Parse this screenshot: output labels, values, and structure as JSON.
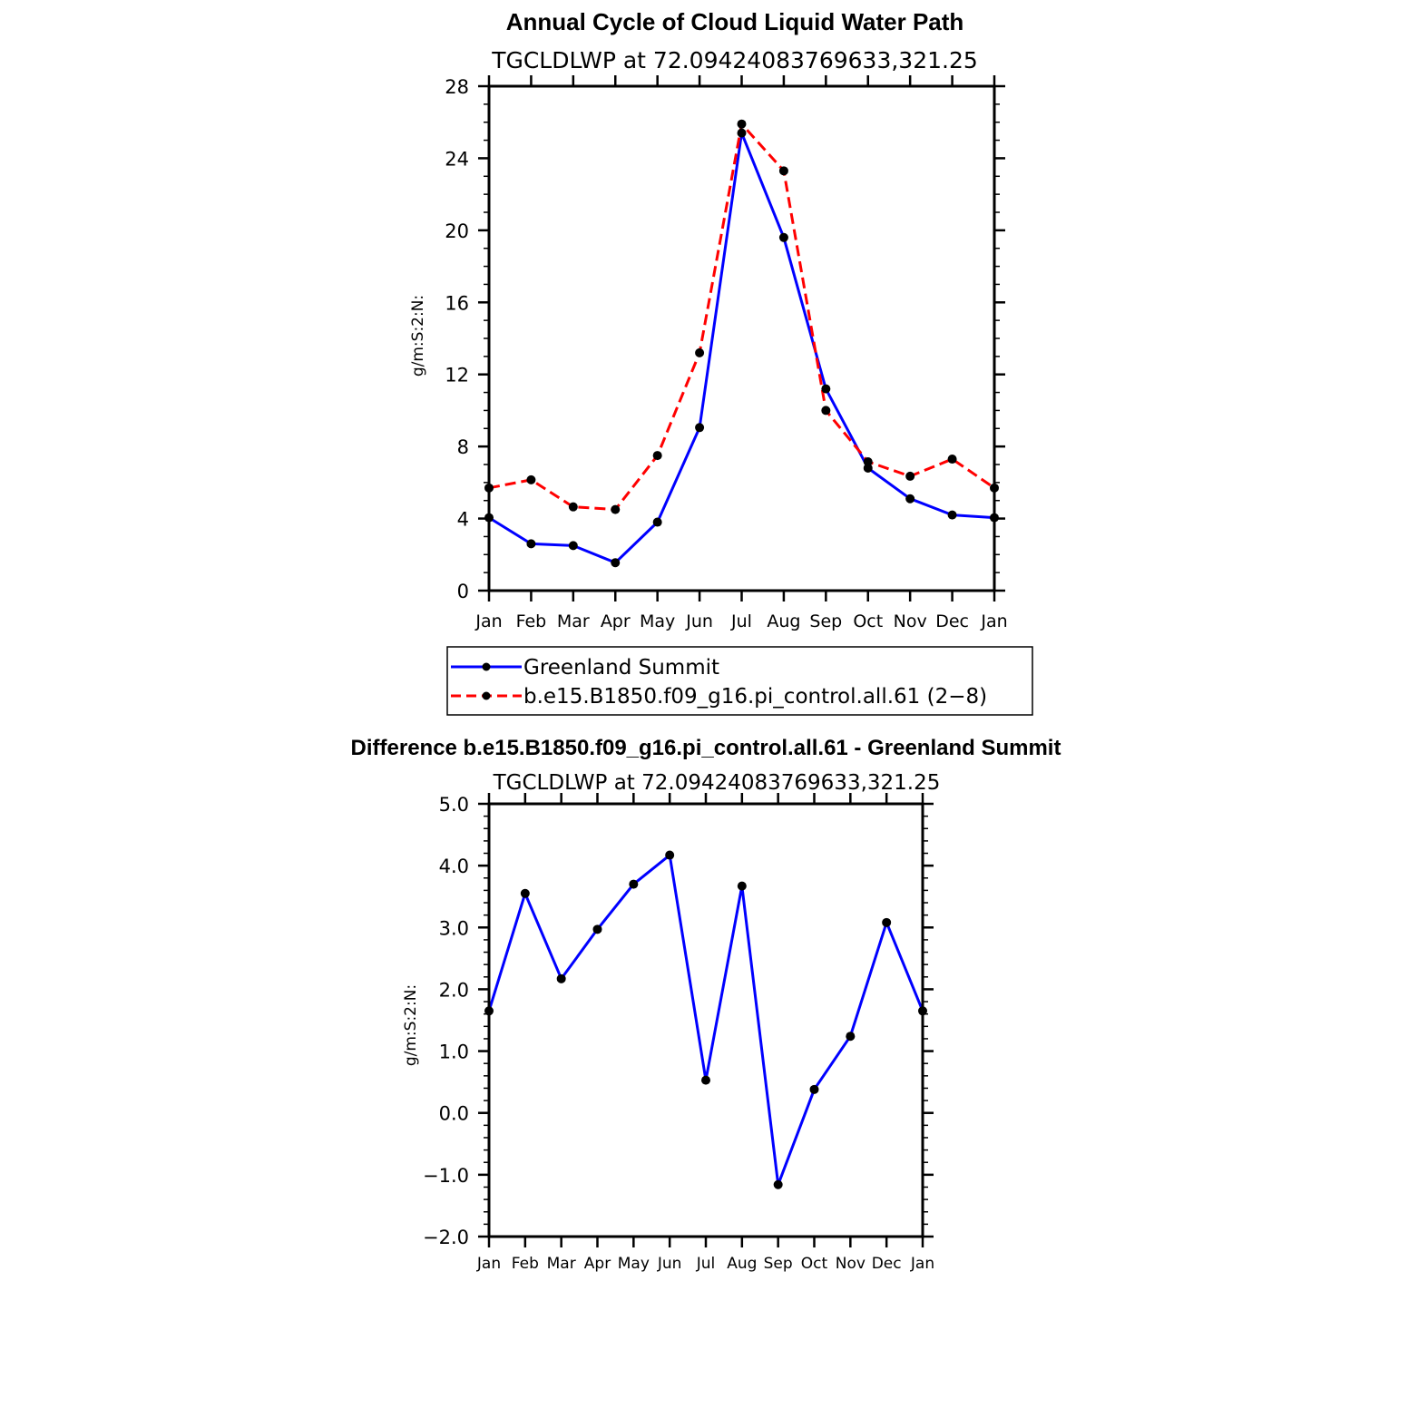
{
  "chart_data": [
    {
      "type": "line",
      "title": "Annual Cycle of Cloud Liquid Water Path",
      "subtitle": "TGCLDLWP  at  72.09424083769633,321.25",
      "ylabel": "g/m:S:2:N:",
      "xlabel": "",
      "ylim": [
        0,
        28
      ],
      "yticks": [
        0,
        4,
        8,
        12,
        16,
        20,
        24,
        28
      ],
      "categories": [
        "Jan",
        "Feb",
        "Mar",
        "Apr",
        "May",
        "Jun",
        "Jul",
        "Aug",
        "Sep",
        "Oct",
        "Nov",
        "Dec",
        "Jan"
      ],
      "legend_position": "bottom",
      "series": [
        {
          "name": "Greenland Summit",
          "color": "#0000ff",
          "dashed": false,
          "values": [
            4.05,
            2.6,
            2.5,
            1.55,
            3.8,
            9.05,
            25.4,
            19.6,
            11.2,
            6.8,
            5.1,
            4.2,
            4.05
          ]
        },
        {
          "name": "b.e15.B1850.f09_g16.pi_control.all.61 (2−8)",
          "color": "#ff0000",
          "dashed": true,
          "values": [
            5.7,
            6.15,
            4.65,
            4.5,
            7.5,
            13.2,
            25.9,
            23.3,
            10.0,
            7.15,
            6.35,
            7.3,
            5.7
          ]
        }
      ]
    },
    {
      "type": "line",
      "title": "Difference b.e15.B1850.f09_g16.pi_control.all.61 - Greenland Summit",
      "subtitle": "TGCLDLWP  at  72.09424083769633,321.25",
      "ylabel": "g/m:S:2:N:",
      "xlabel": "",
      "ylim": [
        -2.0,
        5.0
      ],
      "yticks": [
        "−2.0",
        "−1.0",
        "0.0",
        "1.0",
        "2.0",
        "3.0",
        "4.0",
        "5.0"
      ],
      "yticks_values": [
        -2.0,
        -1.0,
        0.0,
        1.0,
        2.0,
        3.0,
        4.0,
        5.0
      ],
      "categories": [
        "Jan",
        "Feb",
        "Mar",
        "Apr",
        "May",
        "Jun",
        "Jul",
        "Aug",
        "Sep",
        "Oct",
        "Nov",
        "Dec",
        "Jan"
      ],
      "series": [
        {
          "color": "#0000ff",
          "dashed": false,
          "values": [
            1.65,
            3.55,
            2.17,
            2.97,
            3.7,
            4.17,
            0.53,
            3.67,
            -1.16,
            0.38,
            1.24,
            3.08,
            1.65
          ]
        }
      ]
    }
  ]
}
